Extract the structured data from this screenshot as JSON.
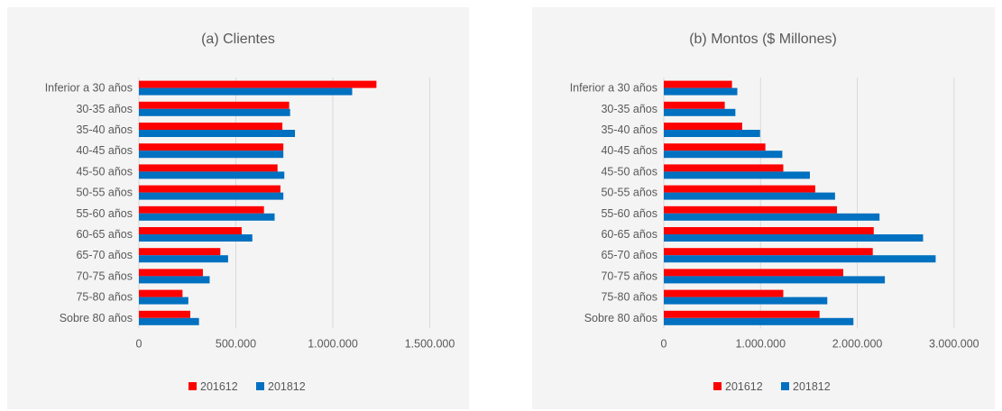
{
  "colors": {
    "s201612": "#ff0000",
    "s201812": "#0070c0"
  },
  "chart_data": [
    {
      "type": "bar",
      "orientation": "horizontal",
      "title": "(a) Clientes",
      "categories": [
        "Inferior a 30 años",
        "30-35 años",
        "35-40 años",
        "40-45 años",
        "45-50 años",
        "50-55 años",
        "55-60 años",
        "60-65 años",
        "65-70 años",
        "70-75 años",
        "75-80 años",
        "Sobre 80 años"
      ],
      "series": [
        {
          "name": "201612",
          "values": [
            1225000,
            775000,
            740000,
            745000,
            715000,
            730000,
            645000,
            530000,
            420000,
            330000,
            225000,
            265000
          ]
        },
        {
          "name": "201812",
          "values": [
            1100000,
            780000,
            805000,
            745000,
            750000,
            745000,
            700000,
            585000,
            460000,
            365000,
            255000,
            310000
          ]
        }
      ],
      "xlim": [
        0,
        1600000
      ],
      "xticks": [
        0,
        500000,
        1000000,
        1500000
      ],
      "xtick_labels": [
        "0",
        "500.000",
        "1.000.000",
        "1.500.000"
      ],
      "grid": true,
      "legend": "bottom"
    },
    {
      "type": "bar",
      "orientation": "horizontal",
      "title": "(b) Montos ($ Millones)",
      "categories": [
        "Inferior a 30 años",
        "30-35 años",
        "35-40 años",
        "40-45 años",
        "45-50 años",
        "50-55 años",
        "55-60 años",
        "60-65 años",
        "65-70 años",
        "70-75 años",
        "75-80 años",
        "Sobre 80 años"
      ],
      "series": [
        {
          "name": "201612",
          "values": [
            705000,
            630000,
            810000,
            1050000,
            1235000,
            1565000,
            1790000,
            2170000,
            2160000,
            1855000,
            1235000,
            1610000
          ]
        },
        {
          "name": "201812",
          "values": [
            760000,
            740000,
            995000,
            1225000,
            1510000,
            1770000,
            2230000,
            2680000,
            2810000,
            2285000,
            1690000,
            1960000
          ]
        }
      ],
      "xlim": [
        0,
        3300000
      ],
      "xticks": [
        0,
        1000000,
        2000000,
        3000000
      ],
      "xtick_labels": [
        "0",
        "1.000.000",
        "2.000.000",
        "3.000.000"
      ],
      "grid": true,
      "legend": "bottom"
    }
  ]
}
